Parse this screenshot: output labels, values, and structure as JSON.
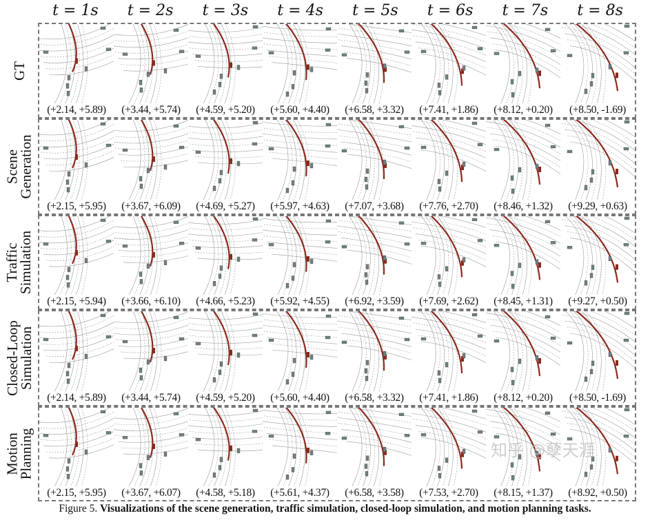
{
  "time_labels": [
    "t = 1s",
    "t = 2s",
    "t = 3s",
    "t = 4s",
    "t = 5s",
    "t = 6s",
    "t = 7s",
    "t = 8s"
  ],
  "rows": [
    {
      "label": "GT",
      "coords": [
        "(+2.14, +5.89)",
        "(+3.44, +5.74)",
        "(+4.59, +5.20)",
        "(+5.60, +4.40)",
        "(+6.58, +3.32)",
        "(+7.41, +1.86)",
        "(+8.12, +0.20)",
        "(+8.50, -1.69)"
      ]
    },
    {
      "label": "Scene\nGeneration",
      "coords": [
        "(+2.15, +5.95)",
        "(+3.67, +6.09)",
        "(+4.69, +5.27)",
        "(+5.97, +4.63)",
        "(+7.07, +3.68)",
        "(+7.76, +2.70)",
        "(+8.46, +1.32)",
        "(+9.29, +0.63)"
      ]
    },
    {
      "label": "Traffic\nSimulation",
      "coords": [
        "(+2.15, +5.94)",
        "(+3.66, +6.10)",
        "(+4.66, +5.23)",
        "(+5.92, +4.55)",
        "(+6.92, +3.59)",
        "(+7.69, +2.62)",
        "(+8.45, +1.31)",
        "(+9.27, +0.50)"
      ]
    },
    {
      "label": "Closed-Loop\nSimulation",
      "coords": [
        "(+2.14, +5.89)",
        "(+3.44, +5.74)",
        "(+4.59, +5.20)",
        "(+5.60, +4.40)",
        "(+6.58, +3.32)",
        "(+7.41, +1.86)",
        "(+8.12, +0.20)",
        "(+8.50, -1.69)"
      ]
    },
    {
      "label": "Motion\nPlanning",
      "coords": [
        "(+2.15, +5.95)",
        "(+3.67, +6.07)",
        "(+4.58, +5.18)",
        "(+5.61, +4.37)",
        "(+6.58, +3.58)",
        "(+7.53, +2.70)",
        "(+8.15, +1.37)",
        "(+8.92, +0.50)"
      ]
    }
  ],
  "caption": {
    "prefix": "Figure 5. ",
    "bold": "Visualizations of the scene generation, traffic simulation, closed-loop simulation, and motion planning tasks."
  },
  "watermark": "知乎 @孽天涯",
  "colors": {
    "ego_trajectory": "#8b2a1e",
    "agent": "#6f8080",
    "lane": "#999999"
  }
}
